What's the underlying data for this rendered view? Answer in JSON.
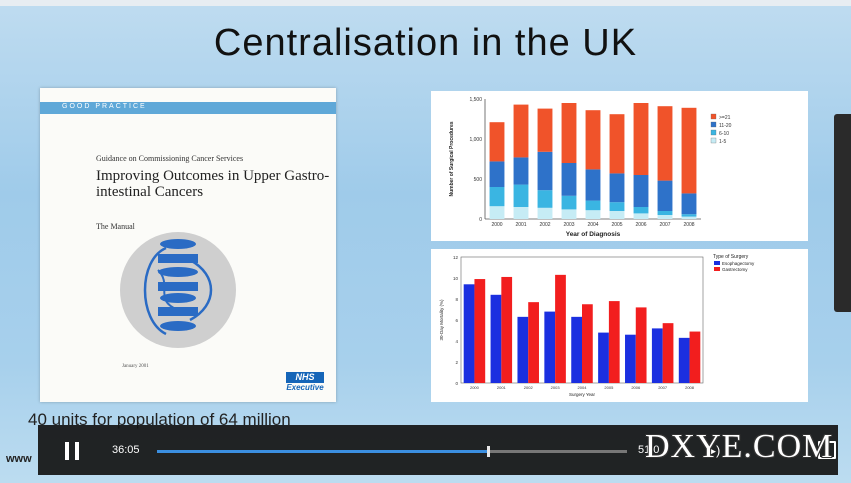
{
  "slide": {
    "title": "Centralisation in the UK",
    "caption": "40 units for population of 64 million",
    "site_text": "www"
  },
  "document": {
    "band_label": "GOOD PRACTICE",
    "subtitle": "Guidance on Commissioning Cancer Services",
    "title": "Improving Outcomes in Upper Gastro-intestinal Cancers",
    "manual": "The Manual",
    "date": "January 2001",
    "logo_nhs": "NHS",
    "logo_exec": "Executive"
  },
  "player": {
    "current_time": "36:05",
    "total_time": "51:0",
    "progress_fraction": 0.705
  },
  "watermark": "DXYE.COM",
  "colors": {
    "orange": "#f0532a",
    "blue": "#2e72c9",
    "cyan": "#3ab5e2",
    "light": "#c6ecf5",
    "bar_blue": "#1b2fe0",
    "bar_red": "#f21e1e"
  },
  "chart_data": [
    {
      "type": "bar",
      "stacked": true,
      "categories": [
        "2000",
        "2001",
        "2002",
        "2003",
        "2004",
        "2005",
        "2006",
        "2007",
        "2008"
      ],
      "xlabel": "Year of Diagnosis",
      "ylabel": "Number of Surgical Procedures",
      "ylim": [
        0,
        1500
      ],
      "yticks": [
        "0",
        "500",
        "1,000",
        "1,500"
      ],
      "series": [
        {
          "name": "1-5",
          "color": "light",
          "values": [
            160,
            150,
            140,
            120,
            110,
            100,
            70,
            50,
            30
          ]
        },
        {
          "name": "6-10",
          "color": "cyan",
          "values": [
            240,
            280,
            220,
            170,
            120,
            110,
            80,
            50,
            30
          ]
        },
        {
          "name": "11-20",
          "color": "blue",
          "values": [
            320,
            340,
            480,
            410,
            390,
            360,
            400,
            380,
            260
          ]
        },
        {
          "name": ">=21",
          "color": "orange",
          "values": [
            490,
            660,
            540,
            750,
            740,
            740,
            900,
            930,
            1070
          ]
        }
      ],
      "legend_order": [
        ">=21",
        "11-20",
        "6-10",
        "1-5"
      ],
      "legend": "right"
    },
    {
      "type": "bar",
      "categories": [
        "2000",
        "2001",
        "2002",
        "2003",
        "2004",
        "2005",
        "2006",
        "2007",
        "2008"
      ],
      "xlabel": "Surgery Year",
      "ylabel": "30-Day Mortality (%)",
      "ylim": [
        0,
        12
      ],
      "yticks": [
        "0",
        "2",
        "4",
        "6",
        "8",
        "10",
        "12"
      ],
      "legend_title": "Type of Surgery",
      "series": [
        {
          "name": "Esophagectomy",
          "color": "bar_blue",
          "values": [
            9.4,
            8.4,
            6.3,
            6.8,
            6.3,
            4.8,
            4.6,
            5.2,
            4.3
          ]
        },
        {
          "name": "Gastrectomy",
          "color": "bar_red",
          "values": [
            9.9,
            10.1,
            7.7,
            10.3,
            7.5,
            7.8,
            7.2,
            5.7,
            4.9
          ]
        }
      ],
      "legend": "top-right"
    }
  ]
}
